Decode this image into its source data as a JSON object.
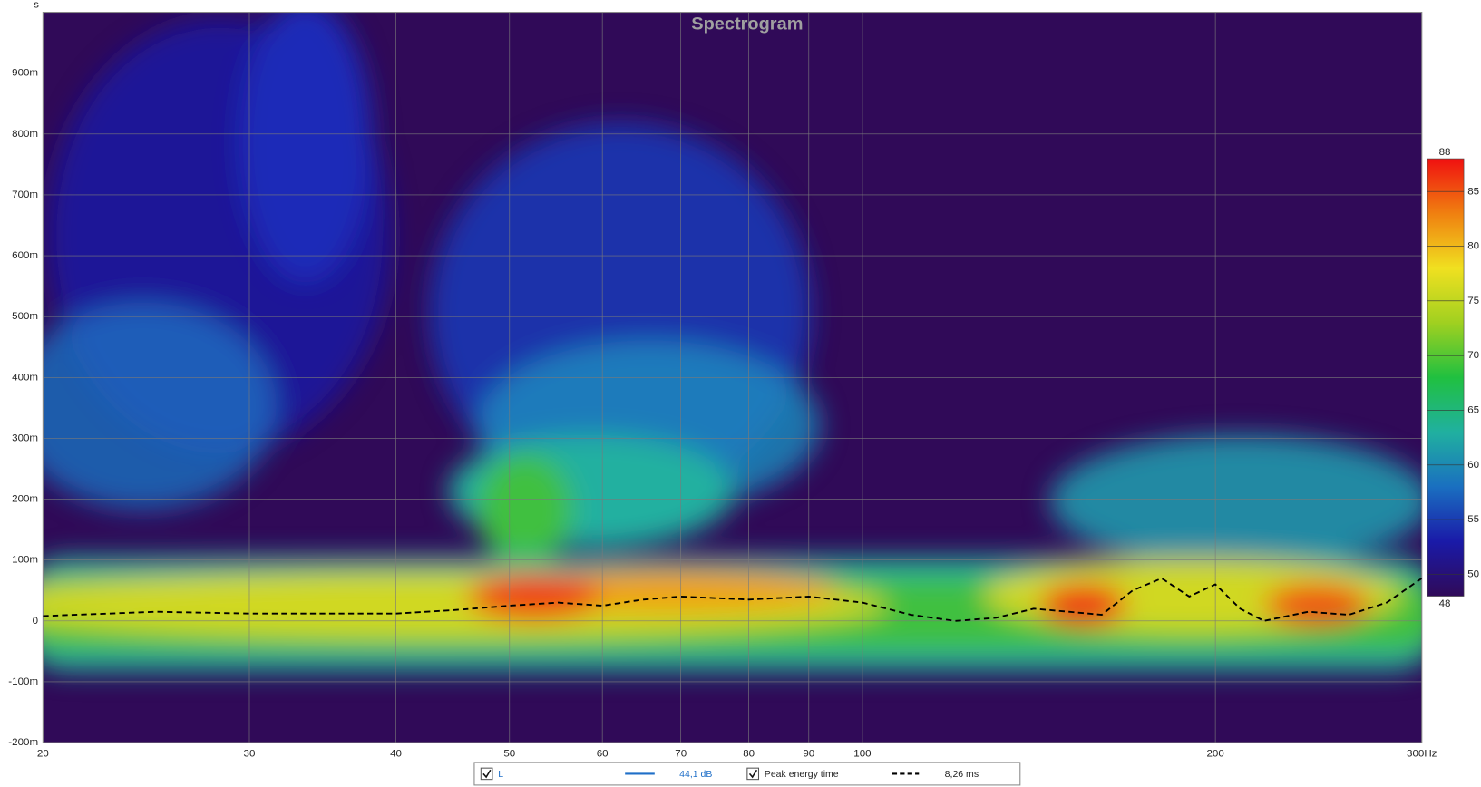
{
  "chart_data": {
    "type": "spectrogram",
    "title": "Spectrogram",
    "y_label": "s",
    "xscale": "log",
    "xlim": [
      20,
      300
    ],
    "xticks": [
      20,
      30,
      40,
      50,
      60,
      70,
      80,
      90,
      100,
      200,
      {
        "value": 300,
        "label": "300Hz"
      }
    ],
    "ylim": [
      -0.2,
      1.0
    ],
    "yticks": [
      {
        "value": -0.2,
        "label": "-200m"
      },
      {
        "value": -0.1,
        "label": "-100m"
      },
      0,
      {
        "value": 0.1,
        "label": "100m"
      },
      {
        "value": 0.2,
        "label": "200m"
      },
      {
        "value": 0.3,
        "label": "300m"
      },
      {
        "value": 0.4,
        "label": "400m"
      },
      {
        "value": 0.5,
        "label": "500m"
      },
      {
        "value": 0.6,
        "label": "600m"
      },
      {
        "value": 0.7,
        "label": "700m"
      },
      {
        "value": 0.8,
        "label": "800m"
      },
      {
        "value": 0.9,
        "label": "900m"
      }
    ],
    "grid": true,
    "background": "#300a58",
    "spectrogram": {
      "name": "L",
      "readout": "44,1 dB",
      "color": "#1f6fc8"
    },
    "colorbar": {
      "lim": [
        48,
        88
      ],
      "ticks": [
        50,
        55,
        60,
        65,
        70,
        75,
        80,
        85
      ],
      "colors": [
        "#300a58",
        "#1a1aa8",
        "#1a6fc0",
        "#20b0a0",
        "#20c040",
        "#a0d020",
        "#f0e020",
        "#f08010",
        "#f01010"
      ]
    },
    "x": [
      20,
      25,
      30,
      35,
      40,
      45,
      50,
      55,
      60,
      65,
      70,
      80,
      90,
      100,
      110,
      120,
      130,
      140,
      150,
      160,
      170,
      180,
      190,
      200,
      210,
      220,
      240,
      260,
      280,
      300
    ],
    "series": [
      {
        "name": "Peak energy time",
        "readout": "8,26 ms",
        "color": "#000000",
        "dashed": true,
        "values": [
          0.008,
          0.015,
          0.012,
          0.012,
          0.012,
          0.018,
          0.025,
          0.03,
          0.025,
          0.035,
          0.04,
          0.035,
          0.04,
          0.03,
          0.01,
          0.0,
          0.005,
          0.02,
          0.015,
          0.01,
          0.05,
          0.07,
          0.04,
          0.06,
          0.02,
          0.0,
          0.015,
          0.01,
          0.03,
          0.07
        ]
      }
    ]
  }
}
